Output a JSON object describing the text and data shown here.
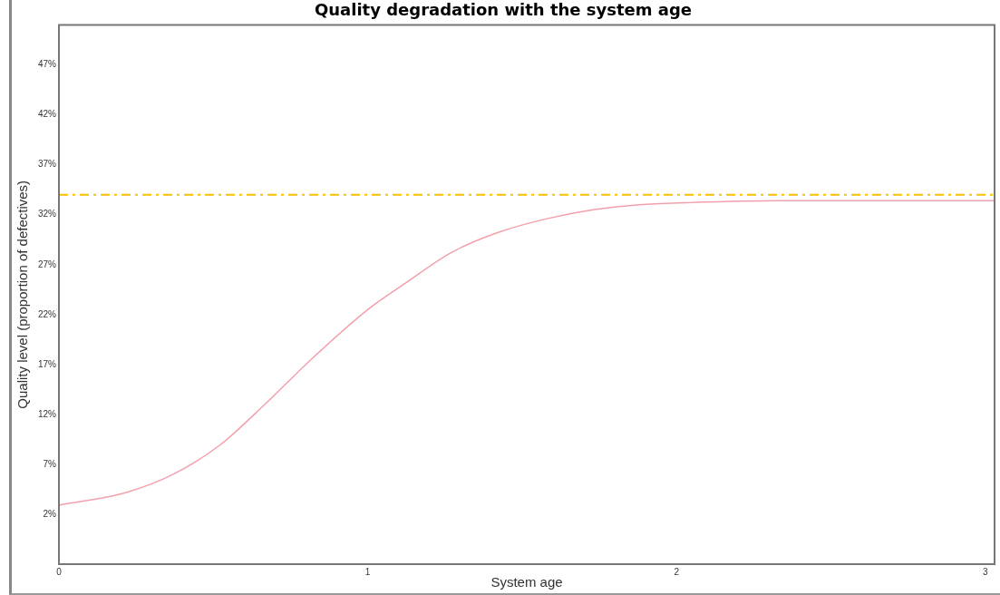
{
  "chart_data": {
    "type": "line",
    "title": "Quality degradation with the system age",
    "xlabel": "System age",
    "ylabel": "Quality level (proportion of defectives)",
    "x": [
      0,
      0.22,
      0.37,
      0.52,
      0.67,
      0.82,
      1.0,
      1.12,
      1.27,
      1.42,
      1.58,
      1.73,
      1.88,
      2.03,
      2.33,
      2.7,
      3.03
    ],
    "series": [
      {
        "color": "#f2a0ab",
        "values": [
          2.9,
          4.2,
          6,
          8.9,
          13.1,
          17.6,
          22.5,
          25.1,
          28.2,
          30.2,
          31.6,
          32.5,
          33.0,
          33.2,
          33.4,
          33.4,
          33.4
        ]
      }
    ],
    "xlim": [
      0,
      3.03
    ],
    "xticks": [
      0,
      1,
      2,
      3
    ],
    "ylim": [
      -3,
      51
    ],
    "yticks": [
      {
        "value": 2,
        "label": "2%"
      },
      {
        "value": 7,
        "label": "7%"
      },
      {
        "value": 12,
        "label": "12%"
      },
      {
        "value": 17,
        "label": "17%"
      },
      {
        "value": 22,
        "label": "22%"
      },
      {
        "value": 27,
        "label": "27%"
      },
      {
        "value": 32,
        "label": "32%"
      },
      {
        "value": 37,
        "label": "37%"
      },
      {
        "value": 42,
        "label": "42%"
      },
      {
        "value": 47,
        "label": "47%"
      }
    ],
    "ref_lines": [
      {
        "axis": "y",
        "value": 34,
        "color": "#f5c000",
        "line_style": "dashed"
      }
    ],
    "grid": false,
    "legend": false,
    "marker": "none",
    "line_style": "solid"
  }
}
